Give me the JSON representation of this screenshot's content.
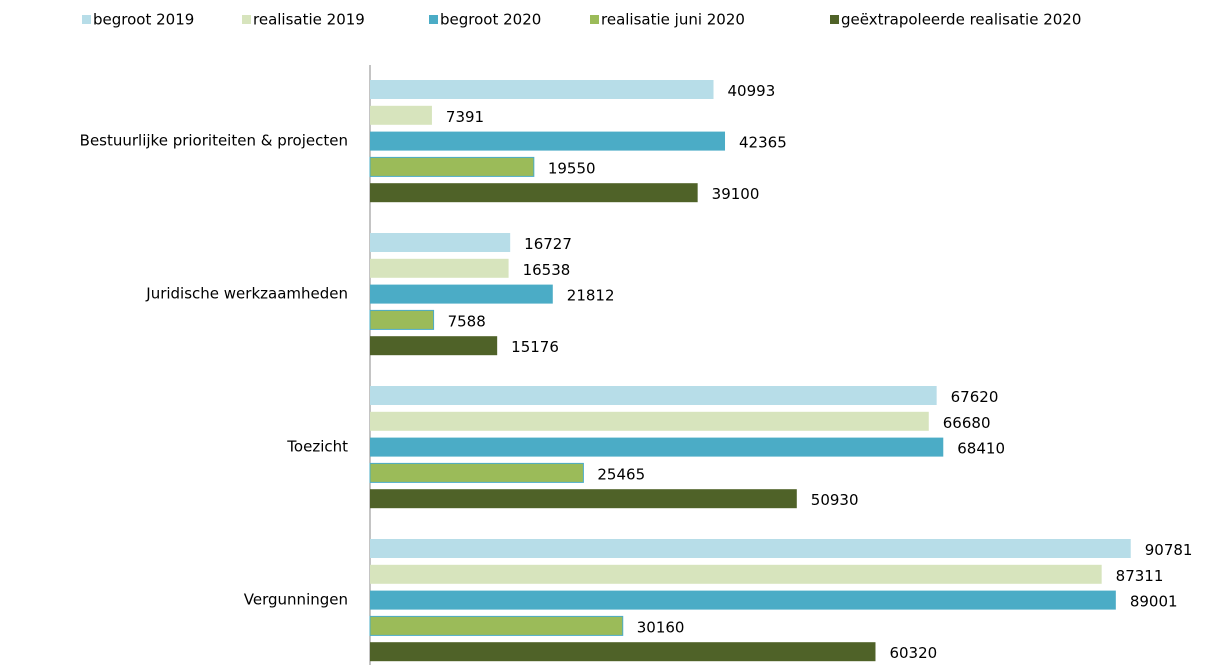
{
  "chart_data": {
    "type": "bar",
    "orientation": "horizontal",
    "categories": [
      "Bestuurlijke prioriteiten & projecten",
      "Juridische werkzaamheden",
      "Toezicht",
      "Vergunningen"
    ],
    "series": [
      {
        "name": "begroot 2019",
        "color": "#b7dde8",
        "values": [
          40993,
          16727,
          67620,
          90781
        ]
      },
      {
        "name": "realisatie 2019",
        "color": "#d7e4bd",
        "values": [
          7391,
          16538,
          66680,
          87311
        ]
      },
      {
        "name": "begroot 2020",
        "color": "#4bacc6",
        "values": [
          42365,
          21812,
          68410,
          89001
        ]
      },
      {
        "name": "realisatie juni 2020",
        "color": "#9bbb59",
        "values": [
          19550,
          7588,
          25465,
          30160
        ]
      },
      {
        "name": "geëxtrapoleerde realisatie 2020",
        "color": "#4f6228",
        "values": [
          39100,
          15176,
          50930,
          60320
        ]
      }
    ],
    "xlim": [
      0,
      100000
    ],
    "legend": "top"
  }
}
